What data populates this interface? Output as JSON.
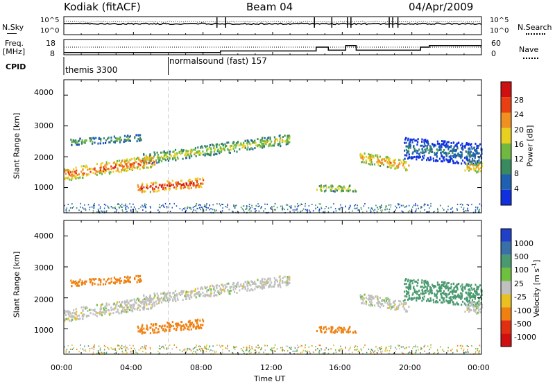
{
  "header": {
    "station": "Kodiak (fitACF)",
    "beam": "Beam 04",
    "date": "04/Apr/2009"
  },
  "strip_panels": {
    "nsky_label": "N.Sky",
    "nsearch_label": "N.Search",
    "freq_label_line1": "Freq.",
    "freq_label_line2": "[MHz]",
    "nave_label": "Nave",
    "cpid_label": "CPID",
    "noise_ticks": [
      "10^5",
      "10^0"
    ],
    "freq_ticks": [
      "18",
      "8"
    ],
    "nave_ticks": [
      "60",
      "0"
    ],
    "cpid_segments": [
      {
        "label": "themis 3300",
        "start_hour": 0
      },
      {
        "label": "normalsound (fast) 157",
        "start_hour": 6
      }
    ]
  },
  "axes": {
    "xlabel": "Time UT",
    "x_ticks": [
      "00:00",
      "04:00",
      "08:00",
      "12:00",
      "16:00",
      "20:00",
      "00:00"
    ],
    "ylabel": "Slant Range [km]",
    "y_ticks": [
      "1000",
      "2000",
      "3000",
      "4000"
    ]
  },
  "colorbars": {
    "power": {
      "label": "Power [dB]",
      "ticks": [
        "4",
        "8",
        "12",
        "16",
        "20",
        "24",
        "28"
      ],
      "colors": [
        "#1030e0",
        "#2060b0",
        "#3a8a60",
        "#70b840",
        "#e8d020",
        "#f09020",
        "#e84010",
        "#d01010"
      ]
    },
    "velocity": {
      "label": "Velocity [m s",
      "label_exp": "-1",
      "label_close": "]",
      "ticks": [
        "1000",
        "500",
        "100",
        "25",
        "-25",
        "-100",
        "-500",
        "-1000"
      ],
      "colors": [
        "#2040c8",
        "#3a70a8",
        "#4a9a70",
        "#70c040",
        "#c0c0c0",
        "#e8c020",
        "#f08010",
        "#e03010",
        "#d01010"
      ]
    }
  },
  "chart_data": {
    "type": "heatmap",
    "x_range_hours": [
      0,
      24
    ],
    "y_range_km": [
      180,
      4500
    ],
    "power_scale_db": [
      0,
      30
    ],
    "velocity_scale_ms": [
      -1000,
      1000
    ],
    "gray_flag_range_ms": [
      -25,
      25
    ],
    "echo_regions": [
      {
        "t_start": 0.0,
        "t_end": 5.2,
        "r_center_start": 1450,
        "r_center_end": 1900,
        "width_km": 400,
        "power_db": 24,
        "velocity_ms": 0
      },
      {
        "t_start": 4.5,
        "t_end": 13.0,
        "r_center_start": 1950,
        "r_center_end": 2600,
        "width_km": 350,
        "power_db": 17,
        "velocity_ms": 0
      },
      {
        "t_start": 0.3,
        "t_end": 4.5,
        "r_center_start": 2500,
        "r_center_end": 2650,
        "width_km": 200,
        "power_db": 14,
        "velocity_ms": -300
      },
      {
        "t_start": 4.2,
        "t_end": 8.0,
        "r_center_start": 1000,
        "r_center_end": 1200,
        "width_km": 300,
        "power_db": 27,
        "velocity_ms": -150
      },
      {
        "t_start": 14.5,
        "t_end": 16.8,
        "r_center_start": 1000,
        "r_center_end": 1000,
        "width_km": 200,
        "power_db": 18,
        "velocity_ms": -150
      },
      {
        "t_start": 17.0,
        "t_end": 19.8,
        "r_center_start": 2000,
        "r_center_end": 1750,
        "width_km": 350,
        "power_db": 22,
        "velocity_ms": 0
      },
      {
        "t_start": 19.5,
        "t_end": 24.0,
        "r_center_start": 2300,
        "r_center_end": 2100,
        "width_km": 700,
        "power_db": 9,
        "velocity_ms": 200
      },
      {
        "t_start": 23.0,
        "t_end": 24.0,
        "r_center_start": 1700,
        "r_center_end": 1700,
        "width_km": 400,
        "power_db": 20,
        "velocity_ms": 0
      }
    ],
    "nsky_level": 0.6,
    "freq_segments": [
      {
        "t_start": 0,
        "t_end": 9,
        "mhz": 9.5
      },
      {
        "t_start": 9,
        "t_end": 14.5,
        "mhz": 10.5
      },
      {
        "t_start": 14.5,
        "t_end": 15.2,
        "mhz": 13
      },
      {
        "t_start": 15.2,
        "t_end": 16.2,
        "mhz": 11
      },
      {
        "t_start": 16.2,
        "t_end": 16.8,
        "mhz": 14
      },
      {
        "t_start": 16.8,
        "t_end": 20.5,
        "mhz": 11
      },
      {
        "t_start": 20.5,
        "t_end": 21.0,
        "mhz": 13
      },
      {
        "t_start": 21.0,
        "t_end": 24.0,
        "mhz": 14
      }
    ],
    "nave_level": 30
  }
}
